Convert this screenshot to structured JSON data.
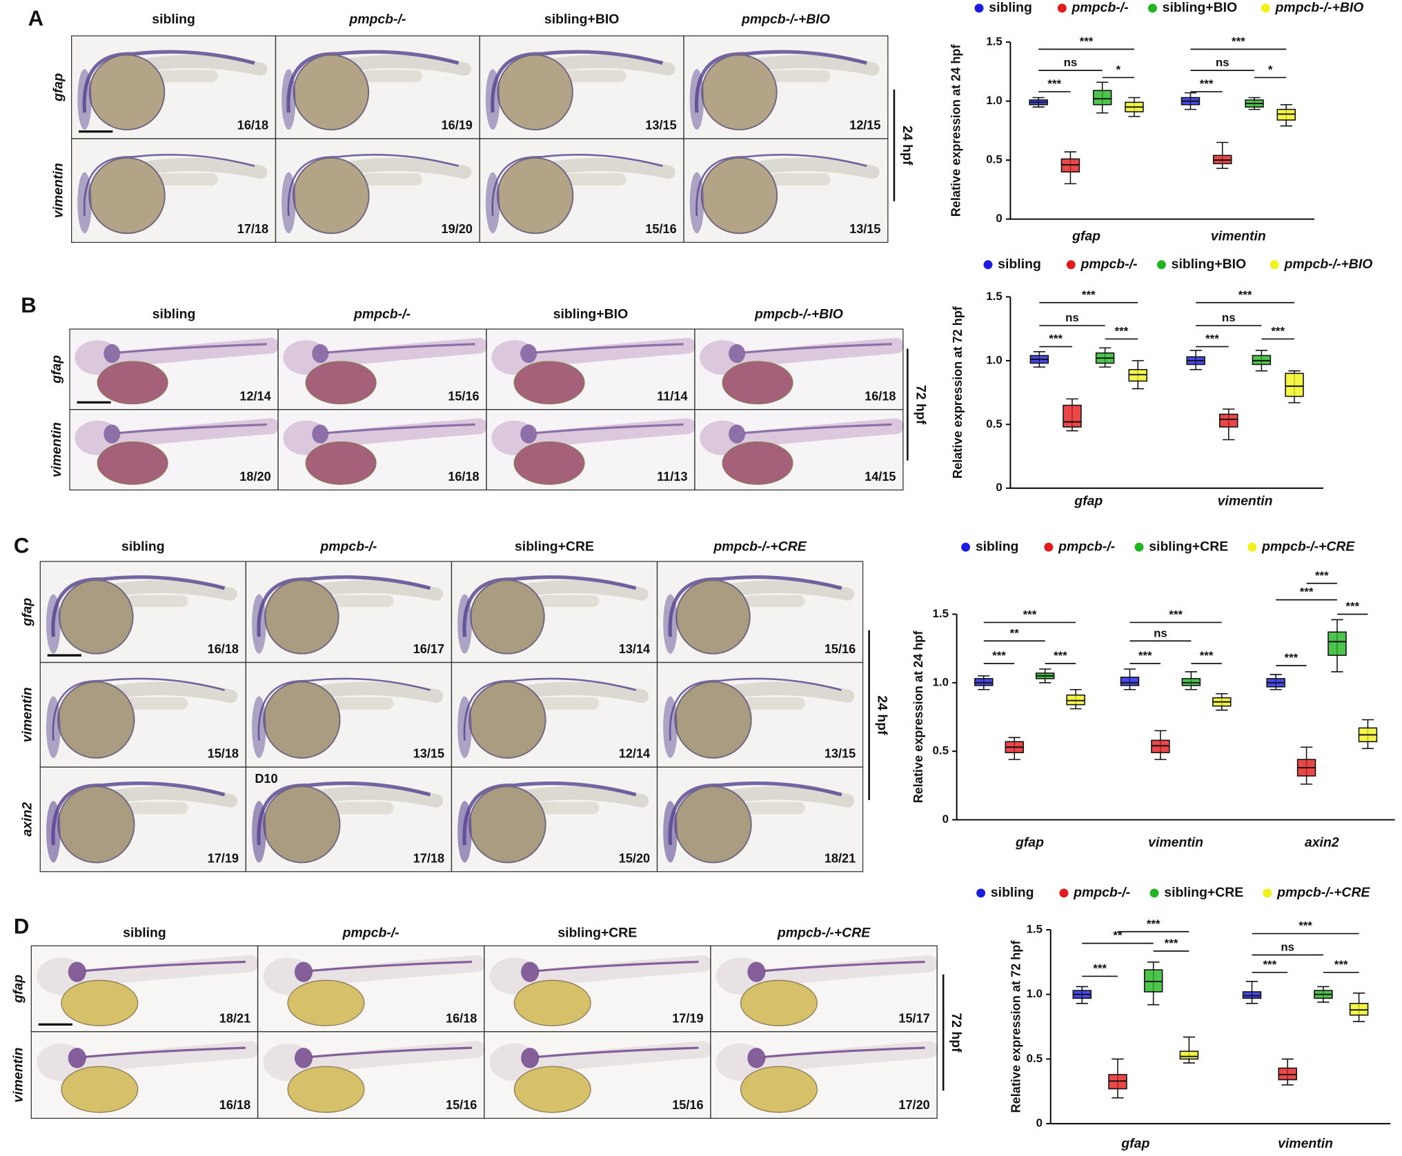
{
  "panels": [
    {
      "label": "A",
      "columns": [
        "sibling",
        "pmpcb-/-",
        "sibling+BIO",
        "pmpcb-/-+BIO"
      ],
      "rows": [
        "gfap",
        "vimentin"
      ],
      "counts": [
        [
          "16/18",
          "16/19",
          "13/15",
          "12/15"
        ],
        [
          "17/18",
          "19/20",
          "15/16",
          "13/15"
        ]
      ],
      "stage": "24 hpf"
    },
    {
      "label": "B",
      "columns": [
        "sibling",
        "pmpcb-/-",
        "sibling+BIO",
        "pmpcb-/-+BIO"
      ],
      "rows": [
        "gfap",
        "vimentin"
      ],
      "counts": [
        [
          "12/14",
          "15/16",
          "11/14",
          "16/18"
        ],
        [
          "18/20",
          "16/18",
          "11/13",
          "14/15"
        ]
      ],
      "stage": "72 hpf"
    },
    {
      "label": "C",
      "columns": [
        "sibling",
        "pmpcb-/-",
        "sibling+CRE",
        "pmpcb-/-+CRE"
      ],
      "rows": [
        "gfap",
        "vimentin",
        "axin2"
      ],
      "counts": [
        [
          "16/18",
          "16/17",
          "13/14",
          "15/16"
        ],
        [
          "15/18",
          "13/15",
          "12/14",
          "13/15"
        ],
        [
          "17/19",
          "17/18",
          "15/20",
          "18/21"
        ]
      ],
      "stage": "24 hpf",
      "note": "D10"
    },
    {
      "label": "D",
      "columns": [
        "sibling",
        "pmpcb-/-",
        "sibling+CRE",
        "pmpcb-/-+CRE"
      ],
      "rows": [
        "gfap",
        "vimentin"
      ],
      "counts": [
        [
          "18/21",
          "16/18",
          "17/19",
          "15/17"
        ],
        [
          "16/18",
          "15/16",
          "15/16",
          "17/20"
        ]
      ],
      "stage": "72 hpf"
    }
  ],
  "chart_data": [
    {
      "type": "box",
      "ylabel": "Relative expression at 24 hpf",
      "categories": [
        "gfap",
        "vimentin"
      ],
      "ylim": [
        0,
        1.5
      ],
      "yticks": [
        0,
        0.5,
        {
          "value": 1,
          "label": "1.0"
        },
        1.5
      ],
      "series": [
        {
          "name": "sibling",
          "color": "#1c1ce0",
          "values": [
            [
              0.95,
              0.97,
              0.99,
              1.01,
              1.03
            ],
            [
              0.93,
              0.97,
              1.0,
              1.03,
              1.07
            ]
          ]
        },
        {
          "name": "pmpcb-/-",
          "color": "#e31a1c",
          "values": [
            [
              0.3,
              0.4,
              0.46,
              0.51,
              0.57
            ],
            [
              0.43,
              0.47,
              0.5,
              0.54,
              0.65
            ]
          ]
        },
        {
          "name": "sibling+BIO",
          "color": "#22b522",
          "values": [
            [
              0.9,
              0.97,
              1.02,
              1.09,
              1.16
            ],
            [
              0.93,
              0.95,
              0.98,
              1.01,
              1.03
            ]
          ]
        },
        {
          "name": "pmpcb-/-+BIO",
          "color": "#f2f21a",
          "values": [
            [
              0.87,
              0.91,
              0.95,
              0.99,
              1.03
            ],
            [
              0.79,
              0.84,
              0.89,
              0.93,
              0.97
            ]
          ]
        }
      ],
      "annotations": [
        [
          "***",
          "ns",
          "***",
          "*"
        ],
        [
          "***",
          "ns",
          "***",
          "*"
        ]
      ]
    },
    {
      "type": "box",
      "ylabel": "Relative expression at 72 hpf",
      "categories": [
        "gfap",
        "vimentin"
      ],
      "ylim": [
        0,
        1.5
      ],
      "yticks": [
        0,
        0.5,
        {
          "value": 1,
          "label": "1.0"
        },
        1.5
      ],
      "series": [
        {
          "name": "sibling",
          "color": "#1c1ce0",
          "values": [
            [
              0.95,
              0.98,
              1.01,
              1.04,
              1.07
            ],
            [
              0.93,
              0.97,
              1.0,
              1.03,
              1.08
            ]
          ]
        },
        {
          "name": "pmpcb-/-",
          "color": "#e31a1c",
          "values": [
            [
              0.45,
              0.48,
              0.52,
              0.65,
              0.7
            ],
            [
              0.38,
              0.48,
              0.54,
              0.58,
              0.62
            ]
          ]
        },
        {
          "name": "sibling+BIO",
          "color": "#22b522",
          "values": [
            [
              0.95,
              0.98,
              1.02,
              1.06,
              1.1
            ],
            [
              0.92,
              0.97,
              1.0,
              1.04,
              1.08
            ]
          ]
        },
        {
          "name": "pmpcb-/-+BIO",
          "color": "#f2f21a",
          "values": [
            [
              0.78,
              0.84,
              0.89,
              0.93,
              1.0
            ],
            [
              0.67,
              0.72,
              0.8,
              0.9,
              0.92
            ]
          ]
        }
      ],
      "annotations": [
        [
          "***",
          "ns",
          "***",
          "***"
        ],
        [
          "***",
          "ns",
          "***",
          "***"
        ]
      ]
    },
    {
      "type": "box",
      "ylabel": "Relative expression at 24 hpf",
      "categories": [
        "gfap",
        "vimentin",
        "axin2"
      ],
      "ylim": [
        0,
        1.5
      ],
      "yticks": [
        0,
        0.5,
        {
          "value": 1,
          "label": "1.0"
        },
        1.5
      ],
      "series": [
        {
          "name": "sibling",
          "color": "#1c1ce0",
          "values": [
            [
              0.95,
              0.98,
              1.0,
              1.03,
              1.05
            ],
            [
              0.95,
              0.98,
              1.0,
              1.04,
              1.1
            ],
            [
              0.95,
              0.97,
              1.0,
              1.03,
              1.06
            ]
          ]
        },
        {
          "name": "pmpcb-/-",
          "color": "#e31a1c",
          "values": [
            [
              0.44,
              0.49,
              0.53,
              0.57,
              0.6
            ],
            [
              0.44,
              0.49,
              0.54,
              0.58,
              0.65
            ],
            [
              0.26,
              0.32,
              0.38,
              0.44,
              0.53
            ]
          ]
        },
        {
          "name": "sibling+CRE",
          "color": "#22b522",
          "values": [
            [
              1.0,
              1.03,
              1.05,
              1.07,
              1.1
            ],
            [
              0.95,
              0.98,
              1.0,
              1.03,
              1.08
            ],
            [
              1.08,
              1.2,
              1.3,
              1.37,
              1.46
            ]
          ]
        },
        {
          "name": "pmpcb-/-+CRE",
          "color": "#f2f21a",
          "values": [
            [
              0.81,
              0.84,
              0.87,
              0.91,
              0.95
            ],
            [
              0.8,
              0.83,
              0.86,
              0.89,
              0.92
            ],
            [
              0.52,
              0.57,
              0.62,
              0.67,
              0.73
            ]
          ]
        }
      ],
      "annotations": [
        [
          "***",
          "**",
          "***",
          "***"
        ],
        [
          "***",
          "ns",
          "***",
          "***"
        ],
        [
          "***",
          "***",
          "***",
          "***"
        ]
      ]
    },
    {
      "type": "box",
      "ylabel": "Relative expression at 72 hpf",
      "categories": [
        "gfap",
        "vimentin"
      ],
      "ylim": [
        0,
        1.5
      ],
      "yticks": [
        0,
        0.5,
        {
          "value": 1,
          "label": "1.0"
        },
        1.5
      ],
      "series": [
        {
          "name": "sibling",
          "color": "#1c1ce0",
          "values": [
            [
              0.93,
              0.97,
              1.0,
              1.03,
              1.06
            ],
            [
              0.93,
              0.97,
              0.99,
              1.02,
              1.1
            ]
          ]
        },
        {
          "name": "pmpcb-/-",
          "color": "#e31a1c",
          "values": [
            [
              0.2,
              0.27,
              0.33,
              0.38,
              0.5
            ],
            [
              0.3,
              0.34,
              0.38,
              0.43,
              0.5
            ]
          ]
        },
        {
          "name": "sibling+CRE",
          "color": "#22b522",
          "values": [
            [
              0.92,
              1.02,
              1.1,
              1.19,
              1.25
            ],
            [
              0.94,
              0.97,
              1.0,
              1.03,
              1.06
            ]
          ]
        },
        {
          "name": "pmpcb-/-+CRE",
          "color": "#f2f21a",
          "values": [
            [
              0.47,
              0.5,
              0.52,
              0.56,
              0.67
            ],
            [
              0.79,
              0.84,
              0.88,
              0.93,
              1.01
            ]
          ]
        }
      ],
      "annotations": [
        [
          "***",
          "**",
          "***",
          "***"
        ],
        [
          "***",
          "ns",
          "***",
          "***"
        ]
      ]
    }
  ]
}
